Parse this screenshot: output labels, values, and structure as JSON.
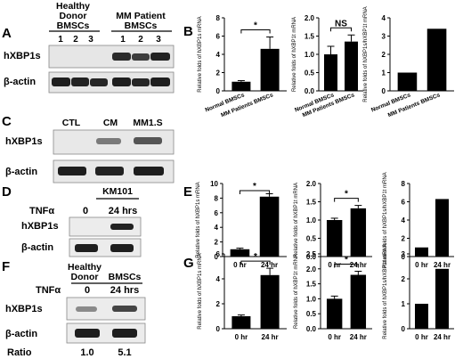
{
  "panel_labels": {
    "A": "A",
    "B": "B",
    "C": "C",
    "D": "D",
    "E": "E",
    "F": "F",
    "G": "G"
  },
  "blot_a": {
    "group_left_line1": "Healthy",
    "group_left_line2": "Donor",
    "group_left_line3": "BMSCs",
    "group_right_line1": "MM Patient",
    "group_right_line2": "BMSCs",
    "lanes": [
      "1",
      "2",
      "3",
      "1",
      "2",
      "3"
    ],
    "rows": [
      "hXBP1s",
      "β-actin"
    ]
  },
  "blot_c": {
    "lanes": [
      "CTL",
      "CM",
      "MM1.S"
    ],
    "rows": [
      "hXBP1s",
      "β-actin"
    ]
  },
  "blot_d": {
    "treatment_header": "KM101",
    "treatment_label": "TNFα",
    "lanes": [
      "0",
      "24 hrs"
    ],
    "rows": [
      "hXBP1s",
      "β-actin"
    ]
  },
  "blot_f": {
    "group_left_line1": "Healthy",
    "group_left_line2": "Donor",
    "group_right": "BMSCs",
    "treatment_label": "TNFα",
    "lanes": [
      "0",
      "24 hrs"
    ],
    "rows": [
      "hXBP1s",
      "β-actin"
    ],
    "ratio_label": "Ratio",
    "ratio_values": [
      "1.0",
      "5.1"
    ]
  },
  "chart_data": [
    {
      "id": "B1",
      "type": "bar",
      "categories": [
        "Normal BMSCs",
        "MM Patients BMSCs"
      ],
      "values": [
        1.0,
        4.6
      ],
      "errors": [
        0.12,
        1.3
      ],
      "ylabel": "Relative folds of hXBP1s mRNA",
      "ylim": [
        0,
        8
      ],
      "yticks": [
        "0",
        "2",
        "4",
        "6",
        "8"
      ],
      "significance": "*"
    },
    {
      "id": "B2",
      "type": "bar",
      "categories": [
        "Normal BMSCs",
        "MM Patients BMSCs"
      ],
      "values": [
        1.0,
        1.35
      ],
      "errors": [
        0.22,
        0.18
      ],
      "ylabel": "Relative folds of hXBP1t mRNA",
      "ylim": [
        0,
        2.0
      ],
      "yticks": [
        "0.0",
        "0.5",
        "1.0",
        "1.5",
        "2.0"
      ],
      "significance": "NS"
    },
    {
      "id": "B3",
      "type": "bar",
      "categories": [
        "Normal BMSCs",
        "MM Patients BMSCs"
      ],
      "values": [
        1.0,
        3.4
      ],
      "errors": [
        0,
        0
      ],
      "ylabel": "Relative folds of hXBP1s/hXBP1t mRNA",
      "ylim": [
        0,
        4
      ],
      "yticks": [
        "0",
        "1",
        "2",
        "3",
        "4"
      ],
      "significance": ""
    },
    {
      "id": "E1",
      "type": "bar",
      "categories": [
        "0 hr",
        "24 hr"
      ],
      "values": [
        1.0,
        8.2
      ],
      "errors": [
        0.15,
        0.4
      ],
      "ylabel": "Relative folds of hXBP1s mRNA",
      "ylim": [
        0,
        10
      ],
      "yticks": [
        "0",
        "2",
        "4",
        "6",
        "8",
        "10"
      ],
      "significance": "*"
    },
    {
      "id": "E2",
      "type": "bar",
      "categories": [
        "0 hr",
        "24 hr"
      ],
      "values": [
        1.0,
        1.32
      ],
      "errors": [
        0.05,
        0.08
      ],
      "ylabel": "Relative folds of hXBP1t mRNA",
      "ylim": [
        0,
        2.0
      ],
      "yticks": [
        "0.0",
        "0.5",
        "1.0",
        "1.5",
        "2.0"
      ],
      "significance": "*"
    },
    {
      "id": "E3",
      "type": "bar",
      "categories": [
        "0 hr",
        "24 hr"
      ],
      "values": [
        1.0,
        6.3
      ],
      "errors": [
        0,
        0
      ],
      "ylabel": "Relative folds of hXBP1s/hXBP1t mRNA",
      "ylim": [
        0,
        8
      ],
      "yticks": [
        "0",
        "2",
        "4",
        "6",
        "8"
      ],
      "significance": ""
    },
    {
      "id": "G1",
      "type": "bar",
      "categories": [
        "0 hr",
        "24 hr"
      ],
      "values": [
        1.0,
        4.3
      ],
      "errors": [
        0.1,
        0.55
      ],
      "ylabel": "Relative folds of hXBP1s mRNA",
      "ylim": [
        0,
        6
      ],
      "yticks": [
        "0",
        "2",
        "4",
        "6"
      ],
      "significance": "*"
    },
    {
      "id": "G2",
      "type": "bar",
      "categories": [
        "0 hr",
        "24 hr"
      ],
      "values": [
        1.0,
        1.8
      ],
      "errors": [
        0.09,
        0.12
      ],
      "ylabel": "Relative folds of hXBP1t mRNA",
      "ylim": [
        0,
        2.5
      ],
      "yticks": [
        "0.0",
        "0.5",
        "1.0",
        "1.5",
        "2.0",
        "2.5"
      ],
      "significance": "*"
    },
    {
      "id": "G3",
      "type": "bar",
      "categories": [
        "0 hr",
        "24 hr"
      ],
      "values": [
        1.0,
        2.4
      ],
      "errors": [
        0,
        0
      ],
      "ylabel": "Relative folds of hXBP1s/hXBP1t mRNA",
      "ylim": [
        0,
        3
      ],
      "yticks": [
        "0",
        "1",
        "2",
        "3"
      ],
      "significance": ""
    }
  ]
}
